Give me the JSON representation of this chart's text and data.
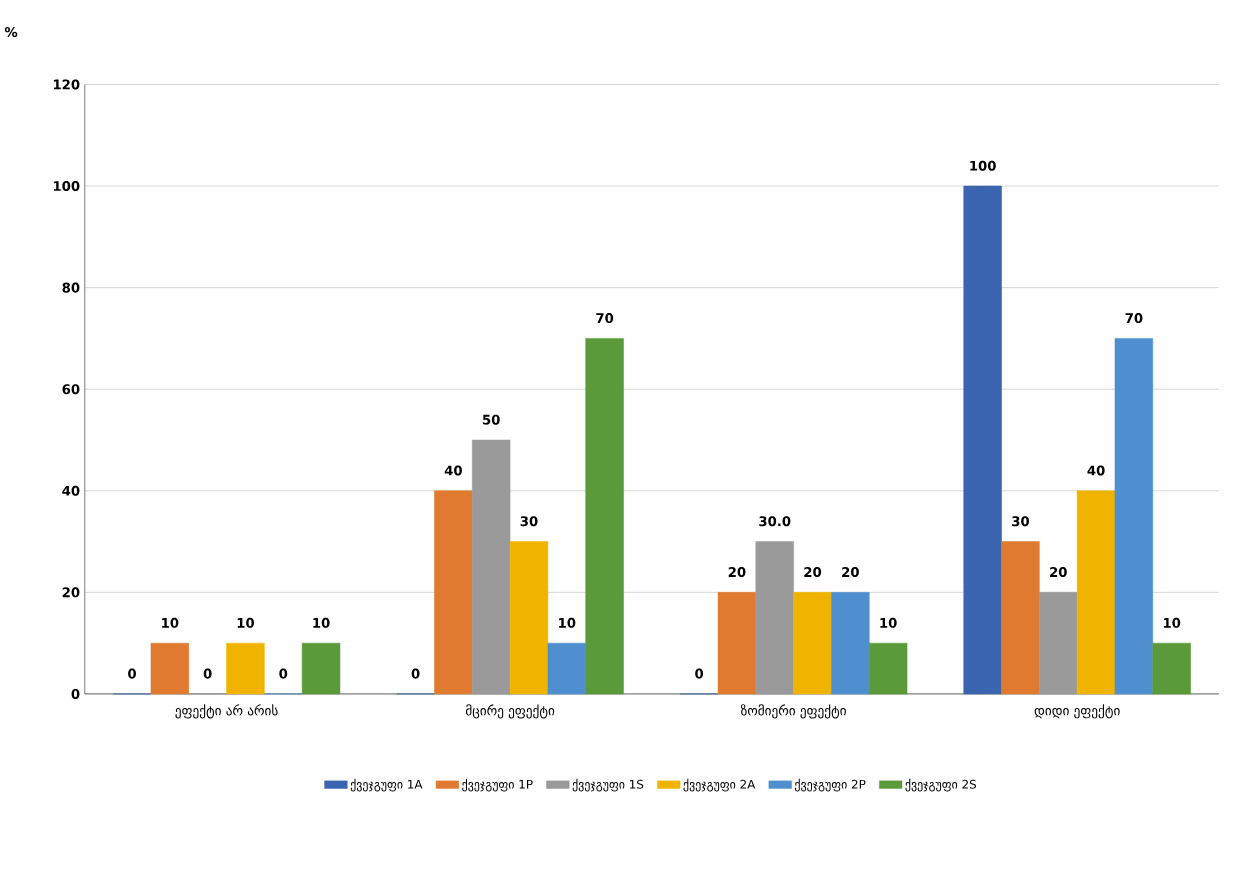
{
  "chart_data": {
    "type": "bar",
    "ylabel": "%",
    "categories": [
      "ეფექტი არ არის",
      "მცირე ეფექტი",
      "ზომიერი ეფექტი",
      "დიდი ეფექტი"
    ],
    "series": [
      {
        "name": "ქვეჯგუფი 1A",
        "color": "#3a63b0",
        "values": [
          0,
          0,
          0,
          100
        ],
        "value_labels": [
          "0",
          "0",
          "0",
          "100"
        ]
      },
      {
        "name": "ქვეჯგუფი 1P",
        "color": "#e07a30",
        "values": [
          10,
          40,
          20,
          30
        ],
        "value_labels": [
          "10",
          "40",
          "20",
          "30"
        ]
      },
      {
        "name": "ქვეჯგუფი 1S",
        "color": "#9a9a9a",
        "values": [
          0,
          50,
          30,
          20
        ],
        "value_labels": [
          "0",
          "50",
          "30.0",
          "20"
        ]
      },
      {
        "name": "ქვეჯგუფი 2A",
        "color": "#f0b400",
        "values": [
          10,
          30,
          20,
          40
        ],
        "value_labels": [
          "10",
          "30",
          "20",
          "40"
        ]
      },
      {
        "name": "ქვეჯგუფი 2P",
        "color": "#4f8fcf",
        "values": [
          0,
          10,
          20,
          70
        ],
        "value_labels": [
          "0",
          "10",
          "20",
          "70"
        ]
      },
      {
        "name": "ქვეჯგუფი 2S",
        "color": "#5a9a3a",
        "values": [
          10,
          70,
          10,
          10
        ],
        "value_labels": [
          "10",
          "70",
          "10",
          "10"
        ]
      }
    ],
    "ylim": [
      0,
      120
    ],
    "yticks": [
      0,
      20,
      40,
      60,
      80,
      100,
      120
    ],
    "grid": "y",
    "legend": "bottom"
  }
}
